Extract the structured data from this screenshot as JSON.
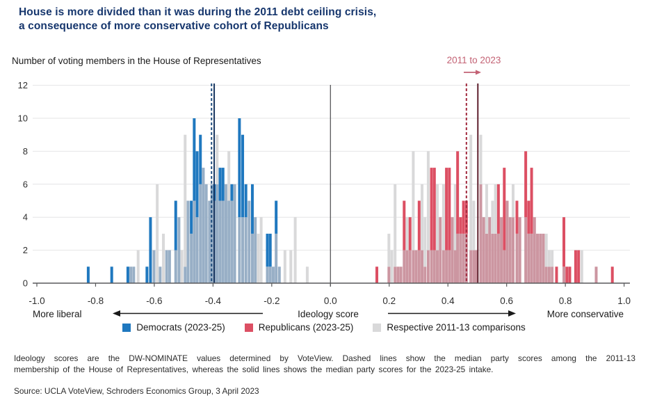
{
  "title": {
    "line1": "House is more divided than it was during the 2011 debt ceiling crisis,",
    "line2": "a consequence of more conservative cohort of Republicans"
  },
  "subtitle": "Number of voting members in the House of Representatives",
  "annotation": {
    "label": "2011 to 2023"
  },
  "legend": [
    {
      "key": "democrat",
      "label": "Democrats (2023-25)"
    },
    {
      "key": "republican",
      "label": "Republicans (2023-25)"
    },
    {
      "key": "comparison",
      "label": "Respective 2011-13 comparisons"
    }
  ],
  "footnote": {
    "line1": "Ideology scores are the DW-NOMINATE values determined by VoteView. Dashed lines show the median party scores among the 2011-13",
    "line2": "membership of the House of Representatives, whereas the solid lines shows the median party scores for the 2023-25 intake."
  },
  "source": "Source: UCLA VoteView, Schroders Economics Group, 3 April 2023",
  "colors": {
    "title": "#16366d",
    "democrat": "#1f78bf",
    "republican": "#dc4f63",
    "comparison": "#d9d9da",
    "democrat_overlap": "#98afc6",
    "republican_overlap": "#cc96a1",
    "dem_median_2011": "#1e4d7e",
    "dem_median_2023": "#17345e",
    "rep_median_2011": "#a12a3e",
    "rep_median_2023": "#5e1f2c",
    "annotation": "#c36274",
    "axis": "#58595b",
    "grid": "#e4e4e6",
    "text": "#303030"
  },
  "chart_data": {
    "type": "bar",
    "subtype": "overlaid histograms, bin width 0.01",
    "title": "Number of voting members in the House of Representatives",
    "xlabel": "Ideology score",
    "ylabel": "Number of voting members",
    "x_axis": {
      "min": -1.0,
      "max": 1.0,
      "tick_labels": [
        "-1.0",
        "-0.8",
        "-0.6",
        "-0.4",
        "-0.2",
        "0.0",
        "0.2",
        "0.4",
        "0.6",
        "0.8",
        "1.0"
      ],
      "left_caption": "More liberal",
      "center_caption": "Ideology score",
      "right_caption": "More conservative"
    },
    "y_axis": {
      "min": 0,
      "max": 12,
      "ticks": [
        0,
        2,
        4,
        6,
        8,
        10,
        12
      ]
    },
    "grid": true,
    "legend_position": "bottom",
    "medians": {
      "dem_2011_dashed": -0.405,
      "dem_2023_solid": -0.396,
      "rep_2011_dashed": 0.463,
      "rep_2023_solid": 0.502
    },
    "series": [
      {
        "name": "Democrats (2023-25) vs 2011-13 comparison",
        "format": "[ideology_score, democrats_2023_25, comparison_2011_13]",
        "bars": [
          [
            -0.825,
            1,
            0
          ],
          [
            -0.745,
            1,
            0
          ],
          [
            -0.69,
            1,
            0
          ],
          [
            -0.68,
            1,
            1
          ],
          [
            -0.67,
            1,
            1
          ],
          [
            -0.655,
            0,
            2
          ],
          [
            -0.625,
            1,
            0
          ],
          [
            -0.613,
            4,
            0
          ],
          [
            -0.601,
            2,
            2
          ],
          [
            -0.59,
            0,
            6
          ],
          [
            -0.58,
            1,
            1
          ],
          [
            -0.569,
            0,
            3
          ],
          [
            -0.558,
            2,
            2
          ],
          [
            -0.548,
            2,
            2
          ],
          [
            -0.527,
            5,
            2
          ],
          [
            -0.516,
            4,
            4
          ],
          [
            -0.506,
            0,
            2
          ],
          [
            -0.495,
            1,
            9
          ],
          [
            -0.485,
            5,
            5
          ],
          [
            -0.474,
            5,
            3
          ],
          [
            -0.464,
            10,
            5
          ],
          [
            -0.454,
            8,
            4
          ],
          [
            -0.443,
            9,
            6
          ],
          [
            -0.433,
            7,
            7
          ],
          [
            -0.423,
            6,
            6
          ],
          [
            -0.412,
            5,
            5
          ],
          [
            -0.404,
            6,
            6
          ],
          [
            -0.395,
            6,
            5
          ],
          [
            -0.386,
            6,
            9
          ],
          [
            -0.376,
            7,
            5
          ],
          [
            -0.366,
            7,
            5
          ],
          [
            -0.356,
            6,
            6
          ],
          [
            -0.346,
            5,
            8
          ],
          [
            -0.336,
            6,
            5
          ],
          [
            -0.326,
            6,
            6
          ],
          [
            -0.31,
            10,
            4
          ],
          [
            -0.299,
            9,
            4
          ],
          [
            -0.288,
            6,
            4
          ],
          [
            -0.277,
            5,
            5
          ],
          [
            -0.266,
            6,
            3
          ],
          [
            -0.256,
            4,
            4
          ],
          [
            -0.246,
            0,
            3
          ],
          [
            -0.236,
            0,
            4
          ],
          [
            -0.215,
            3,
            1
          ],
          [
            -0.205,
            3,
            1
          ],
          [
            -0.195,
            1,
            1
          ],
          [
            -0.185,
            5,
            3
          ],
          [
            -0.174,
            1,
            1
          ],
          [
            -0.155,
            0,
            2
          ],
          [
            -0.135,
            0,
            2
          ],
          [
            -0.12,
            0,
            4
          ],
          [
            -0.079,
            0,
            1
          ]
        ]
      },
      {
        "name": "Republicans (2023-25) vs 2011-13 comparison",
        "format": "[ideology_score, republicans_2023_25, comparison_2011_13]",
        "bars": [
          [
            0.158,
            1,
            0
          ],
          [
            0.199,
            1,
            3
          ],
          [
            0.209,
            0,
            2
          ],
          [
            0.22,
            1,
            6
          ],
          [
            0.23,
            1,
            1
          ],
          [
            0.24,
            1,
            1
          ],
          [
            0.251,
            5,
            2
          ],
          [
            0.261,
            2,
            4
          ],
          [
            0.271,
            4,
            2
          ],
          [
            0.282,
            2,
            8
          ],
          [
            0.292,
            2,
            2
          ],
          [
            0.302,
            5,
            2
          ],
          [
            0.312,
            2,
            6
          ],
          [
            0.322,
            1,
            4
          ],
          [
            0.333,
            2,
            8
          ],
          [
            0.344,
            7,
            2
          ],
          [
            0.354,
            7,
            2
          ],
          [
            0.364,
            2,
            6
          ],
          [
            0.374,
            4,
            4
          ],
          [
            0.385,
            2,
            6
          ],
          [
            0.395,
            7,
            2
          ],
          [
            0.405,
            7,
            2
          ],
          [
            0.415,
            4,
            4
          ],
          [
            0.425,
            2,
            6
          ],
          [
            0.433,
            8,
            3
          ],
          [
            0.443,
            4,
            3
          ],
          [
            0.453,
            5,
            3
          ],
          [
            0.463,
            5,
            3
          ],
          [
            0.478,
            2,
            9
          ],
          [
            0.488,
            2,
            5
          ],
          [
            0.496,
            2,
            2
          ],
          [
            0.512,
            6,
            9
          ],
          [
            0.522,
            4,
            4
          ],
          [
            0.532,
            3,
            6
          ],
          [
            0.542,
            4,
            4
          ],
          [
            0.552,
            3,
            5
          ],
          [
            0.562,
            3,
            6
          ],
          [
            0.572,
            6,
            3
          ],
          [
            0.582,
            4,
            4
          ],
          [
            0.592,
            7,
            2
          ],
          [
            0.602,
            5,
            5
          ],
          [
            0.612,
            4,
            4
          ],
          [
            0.622,
            4,
            6
          ],
          [
            0.635,
            5,
            3
          ],
          [
            0.645,
            4,
            4
          ],
          [
            0.665,
            8,
            4
          ],
          [
            0.675,
            5,
            3
          ],
          [
            0.685,
            7,
            3
          ],
          [
            0.695,
            4,
            4
          ],
          [
            0.705,
            3,
            3
          ],
          [
            0.715,
            3,
            3
          ],
          [
            0.725,
            3,
            3
          ],
          [
            0.735,
            1,
            3
          ],
          [
            0.745,
            1,
            2
          ],
          [
            0.755,
            1,
            2
          ],
          [
            0.77,
            1,
            0
          ],
          [
            0.795,
            4,
            1
          ],
          [
            0.805,
            1,
            0
          ],
          [
            0.815,
            1,
            0
          ],
          [
            0.835,
            2,
            0
          ],
          [
            0.845,
            2,
            0
          ],
          [
            0.856,
            0,
            2
          ],
          [
            0.905,
            1,
            1
          ],
          [
            0.96,
            1,
            0
          ]
        ]
      }
    ]
  }
}
